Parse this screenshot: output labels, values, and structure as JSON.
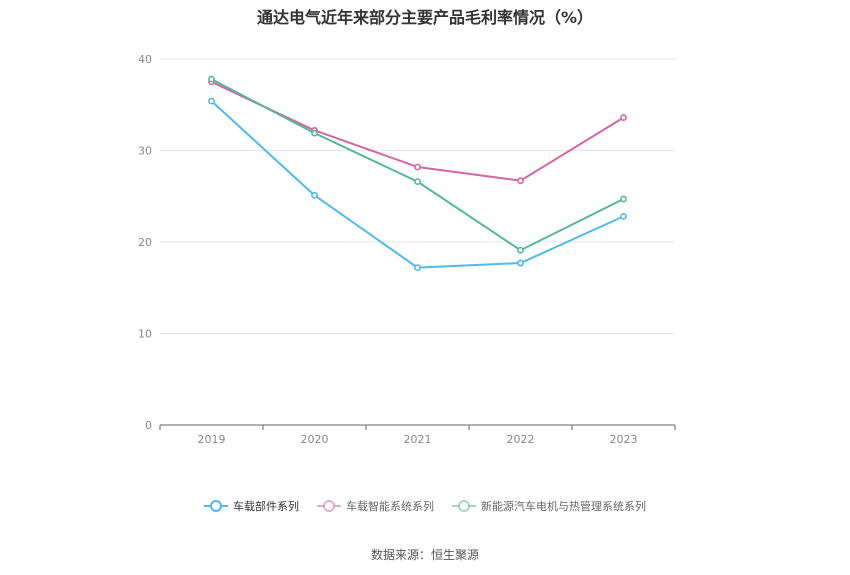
{
  "chart_data": {
    "type": "line",
    "title": "通达电气近年来部分主要产品毛利率情况（%）",
    "categories": [
      "2019",
      "2020",
      "2021",
      "2022",
      "2023"
    ],
    "ylim": [
      0,
      40
    ],
    "yticks": [
      0,
      10,
      20,
      30,
      40
    ],
    "grid": true,
    "legend_position": "bottom",
    "series": [
      {
        "name": "车载部件系列",
        "color": "#4dbbef",
        "values": [
          35.4,
          25.1,
          17.2,
          17.7,
          22.8
        ]
      },
      {
        "name": "车载智能系统系列",
        "color": "#d663a8",
        "values": [
          37.5,
          32.2,
          28.2,
          26.7,
          33.6
        ]
      },
      {
        "name": "新能源汽车电机与热管理系统系列",
        "color": "#52b99a",
        "values": [
          37.8,
          31.9,
          26.6,
          19.1,
          24.7
        ]
      }
    ]
  },
  "source": "数据来源：恒生聚源"
}
